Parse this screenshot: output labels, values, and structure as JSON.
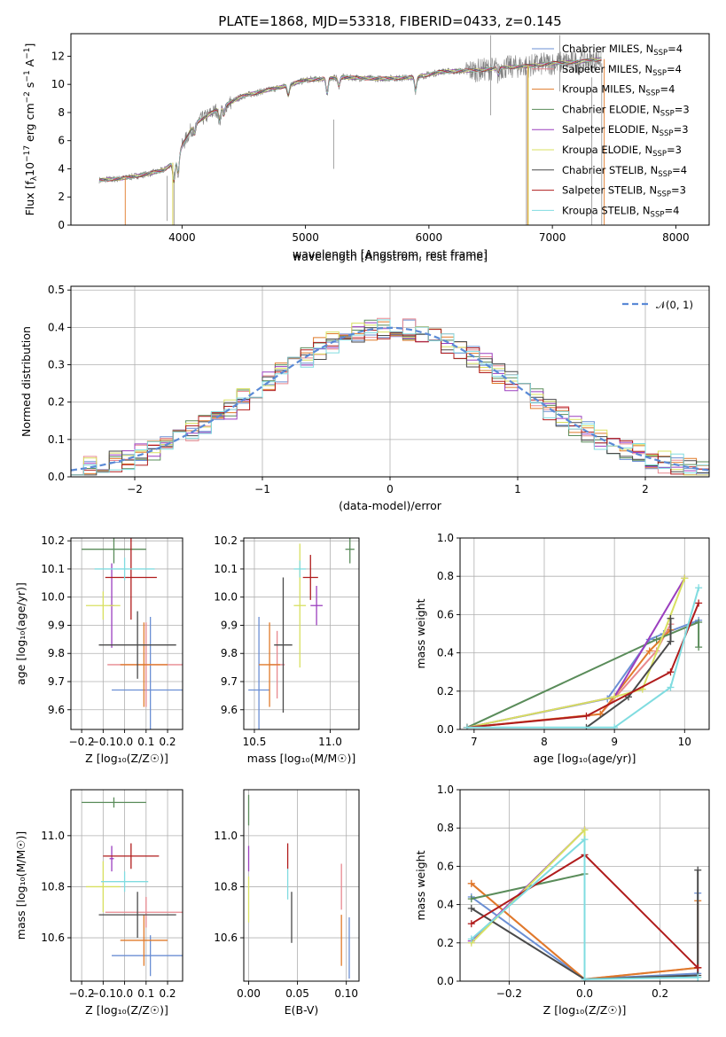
{
  "figure": {
    "title": "PLATE=1868, MJD=53318, FIBERID=0433, z=0.145"
  },
  "models": [
    {
      "label": "Chabrier MILES, N",
      "sub": "SSP",
      "tail": "=4",
      "color": "#6b8fd4"
    },
    {
      "label": "Salpeter MILES, N",
      "sub": "SSP",
      "tail": "=4",
      "color": "#e8888f"
    },
    {
      "label": "Kroupa MILES, N",
      "sub": "SSP",
      "tail": "=4",
      "color": "#e07a2a"
    },
    {
      "label": "Chabrier ELODIE, N",
      "sub": "SSP",
      "tail": "=3",
      "color": "#5a8c5a"
    },
    {
      "label": "Salpeter ELODIE, N",
      "sub": "SSP",
      "tail": "=3",
      "color": "#9b3fbf"
    },
    {
      "label": "Kroupa ELODIE, N",
      "sub": "SSP",
      "tail": "=3",
      "color": "#d8e060"
    },
    {
      "label": "Chabrier STELIB, N",
      "sub": "SSP",
      "tail": "=4",
      "color": "#4a4a4a"
    },
    {
      "label": "Salpeter STELIB, N",
      "sub": "SSP",
      "tail": "=3",
      "color": "#b01c1c"
    },
    {
      "label": "Kroupa STELIB, N",
      "sub": "SSP",
      "tail": "=4",
      "color": "#80dce0"
    }
  ],
  "chart_data": [
    {
      "id": "spectrum",
      "type": "line",
      "xlabel": "wavelength [Angstrom, rest frame]",
      "ylabel_pre": "Flux [f",
      "ylabel_sub": "λ",
      "ylabel_mid": "10",
      "ylabel_sup1": "−17",
      "ylabel_post": " erg cm",
      "ylabel_sup2": "−2",
      "ylabel_post2": " s",
      "ylabel_sup3": "−1",
      "ylabel_post3": " A",
      "ylabel_sup4": "−1",
      "ylabel_end": "]",
      "xlim": [
        3100,
        8270
      ],
      "ylim": [
        0,
        13.6
      ],
      "xticks": [
        4000,
        5000,
        6000,
        7000,
        8000
      ],
      "yticks": [
        0,
        2,
        4,
        6,
        8,
        10,
        12
      ],
      "data_color": "#808080",
      "continuum": {
        "x": [
          3330,
          3500,
          3700,
          3850,
          3950,
          4000,
          4100,
          4300,
          4500,
          4800,
          5000,
          5300,
          5600,
          5900,
          6100,
          6400,
          6600,
          6800,
          7000,
          7200,
          7400
        ],
        "y": [
          3.2,
          3.3,
          3.6,
          3.9,
          4.6,
          5.6,
          7.2,
          8.3,
          9.2,
          9.8,
          10.3,
          10.5,
          10.4,
          10.5,
          10.9,
          11.0,
          11.2,
          11.3,
          11.5,
          11.6,
          11.8
        ]
      },
      "absorption_features": [
        {
          "x": 3934,
          "depth": 1.6
        },
        {
          "x": 3969,
          "depth": 1.4
        },
        {
          "x": 4102,
          "depth": 0.8
        },
        {
          "x": 4304,
          "depth": 1.0
        },
        {
          "x": 4340,
          "depth": 0.7
        },
        {
          "x": 4861,
          "depth": 0.8
        },
        {
          "x": 5175,
          "depth": 1.2
        },
        {
          "x": 5270,
          "depth": 0.6
        },
        {
          "x": 5892,
          "depth": 1.0
        },
        {
          "x": 6563,
          "depth": 0.5
        }
      ]
    },
    {
      "id": "residual_histogram",
      "type": "bar",
      "xlabel": "(data-model)/error",
      "ylabel": "Normed distribution",
      "xlim": [
        -2.5,
        2.5
      ],
      "ylim": [
        0,
        0.51
      ],
      "xticks": [
        -2,
        -1,
        0,
        1,
        2
      ],
      "yticks": [
        0.0,
        0.1,
        0.2,
        0.3,
        0.4,
        0.5
      ],
      "bins": {
        "start": -2.5,
        "width": 0.1,
        "count": 50
      },
      "legend": {
        "label": "𝒩(0, 1)",
        "color": "#5b8ad6"
      },
      "gaussian": {
        "mean": 0,
        "sigma": 1
      }
    },
    {
      "id": "age_vs_Z",
      "type": "scatter",
      "xlabel": "Z [log₁₀(Z/Z☉)]",
      "ylabel": "age  [log₁₀(age/yr)]",
      "xlim": [
        -0.25,
        0.27
      ],
      "ylim": [
        9.53,
        10.21
      ],
      "xticks": [
        -0.2,
        -0.1,
        0.0,
        0.1,
        0.2
      ],
      "yticks": [
        9.6,
        9.7,
        9.8,
        9.9,
        10.0,
        10.1,
        10.2
      ],
      "points": [
        {
          "m": 0,
          "x": 0.12,
          "y": 9.67,
          "xerr": 0.18,
          "yerr": 0.26
        },
        {
          "m": 1,
          "x": 0.1,
          "y": 9.76,
          "xerr": 0.18,
          "yerr": 0.15
        },
        {
          "m": 2,
          "x": 0.09,
          "y": 9.76,
          "xerr": 0.11,
          "yerr": 0.15
        },
        {
          "m": 3,
          "x": -0.05,
          "y": 10.17,
          "xerr": 0.15,
          "yerr": 0.05
        },
        {
          "m": 4,
          "x": -0.06,
          "y": 9.97,
          "xerr": 0.01,
          "yerr": 0.15
        },
        {
          "m": 5,
          "x": -0.1,
          "y": 9.97,
          "xerr": 0.08,
          "yerr": 0.05
        },
        {
          "m": 6,
          "x": 0.06,
          "y": 9.83,
          "xerr": 0.18,
          "yerr": 0.12
        },
        {
          "m": 7,
          "x": 0.03,
          "y": 10.07,
          "xerr": 0.12,
          "yerr": 0.15
        },
        {
          "m": 8,
          "x": 0.0,
          "y": 10.1,
          "xerr": 0.14,
          "yerr": 0.04
        }
      ]
    },
    {
      "id": "age_vs_mass",
      "type": "scatter",
      "xlabel": "mass [log₁₀(M/M☉)]",
      "ylabel": "",
      "xlim": [
        10.43,
        11.19
      ],
      "ylim": [
        9.53,
        10.21
      ],
      "xticks": [
        10.5,
        11.0
      ],
      "yticks": [
        9.6,
        9.7,
        9.8,
        9.9,
        10.0,
        10.1,
        10.2
      ],
      "points": [
        {
          "m": 0,
          "x": 10.53,
          "y": 9.67,
          "xerr": 0.07,
          "yerr": 0.26
        },
        {
          "m": 1,
          "x": 10.65,
          "y": 9.76,
          "xerr": 0.05,
          "yerr": 0.12
        },
        {
          "m": 2,
          "x": 10.6,
          "y": 9.76,
          "xerr": 0.07,
          "yerr": 0.15
        },
        {
          "m": 3,
          "x": 11.13,
          "y": 10.17,
          "xerr": 0.03,
          "yerr": 0.05
        },
        {
          "m": 4,
          "x": 10.91,
          "y": 9.97,
          "xerr": 0.04,
          "yerr": 0.07
        },
        {
          "m": 5,
          "x": 10.8,
          "y": 9.97,
          "xerr": 0.04,
          "yerr": 0.22
        },
        {
          "m": 6,
          "x": 10.69,
          "y": 9.83,
          "xerr": 0.06,
          "yerr": 0.24
        },
        {
          "m": 7,
          "x": 10.87,
          "y": 10.07,
          "xerr": 0.05,
          "yerr": 0.08
        },
        {
          "m": 8,
          "x": 10.8,
          "y": 10.1,
          "xerr": 0.04,
          "yerr": 0.03
        }
      ]
    },
    {
      "id": "mass_weight_vs_age",
      "type": "line",
      "xlabel": "age  [log₁₀(age/yr)]",
      "ylabel": "mass weight",
      "xlim": [
        6.8,
        10.35
      ],
      "ylim": [
        0,
        1.0
      ],
      "xticks": [
        7,
        8,
        9,
        10
      ],
      "yticks": [
        0.0,
        0.2,
        0.4,
        0.6,
        0.8,
        1.0
      ],
      "series": [
        {
          "m": 0,
          "x": [
            6.9,
            8.9,
            9.5,
            9.7,
            10.2
          ],
          "y": [
            0.01,
            0.16,
            0.47,
            0.5,
            0.57
          ]
        },
        {
          "m": 1,
          "x": [
            6.9,
            8.8,
            9.6,
            9.8
          ],
          "y": [
            0.01,
            0.08,
            0.41,
            0.55
          ]
        },
        {
          "m": 2,
          "x": [
            6.9,
            8.8,
            9.5,
            9.8
          ],
          "y": [
            0.01,
            0.08,
            0.41,
            0.52
          ]
        },
        {
          "m": 3,
          "x": [
            6.9,
            9.6,
            10.2,
            10.2
          ],
          "y": [
            0.01,
            0.47,
            0.56,
            0.43
          ]
        },
        {
          "m": 4,
          "x": [
            6.9,
            9.0,
            10.0
          ],
          "y": [
            0.01,
            0.17,
            0.79
          ]
        },
        {
          "m": 5,
          "x": [
            6.9,
            9.0,
            9.4,
            10.0
          ],
          "y": [
            0.01,
            0.17,
            0.21,
            0.79
          ]
        },
        {
          "m": 6,
          "x": [
            8.6,
            9.2,
            9.8,
            9.8
          ],
          "y": [
            0.01,
            0.17,
            0.46,
            0.58
          ]
        },
        {
          "m": 7,
          "x": [
            6.9,
            8.6,
            9.8,
            10.2
          ],
          "y": [
            0.01,
            0.07,
            0.3,
            0.66
          ]
        },
        {
          "m": 8,
          "x": [
            6.9,
            9.0,
            9.8,
            10.2
          ],
          "y": [
            0.01,
            0.01,
            0.22,
            0.74
          ]
        }
      ]
    },
    {
      "id": "mass_vs_Z",
      "type": "scatter",
      "xlabel": "Z [log₁₀(Z/Z☉)]",
      "ylabel": "mass [log₁₀(M/M☉)]",
      "xlim": [
        -0.25,
        0.27
      ],
      "ylim": [
        10.43,
        11.18
      ],
      "xticks": [
        -0.2,
        -0.1,
        0.0,
        0.1,
        0.2
      ],
      "yticks": [
        10.6,
        10.8,
        11.0
      ],
      "points": [
        {
          "m": 0,
          "x": 0.12,
          "y": 10.53,
          "xerr": 0.18,
          "yerr": 0.08
        },
        {
          "m": 1,
          "x": 0.1,
          "y": 10.7,
          "xerr": 0.19,
          "yerr": 0.06
        },
        {
          "m": 2,
          "x": 0.09,
          "y": 10.59,
          "xerr": 0.11,
          "yerr": 0.1
        },
        {
          "m": 3,
          "x": -0.05,
          "y": 11.13,
          "xerr": 0.15,
          "yerr": 0.02
        },
        {
          "m": 4,
          "x": -0.06,
          "y": 10.91,
          "xerr": 0.01,
          "yerr": 0.05
        },
        {
          "m": 5,
          "x": -0.1,
          "y": 10.8,
          "xerr": 0.08,
          "yerr": 0.1
        },
        {
          "m": 6,
          "x": 0.06,
          "y": 10.69,
          "xerr": 0.18,
          "yerr": 0.09
        },
        {
          "m": 7,
          "x": 0.03,
          "y": 10.92,
          "xerr": 0.13,
          "yerr": 0.05
        },
        {
          "m": 8,
          "x": 0.0,
          "y": 10.82,
          "xerr": 0.11,
          "yerr": 0.04
        }
      ]
    },
    {
      "id": "mass_vs_ebv",
      "type": "scatter",
      "xlabel": "E(B-V)",
      "ylabel": "",
      "xlim": [
        -0.005,
        0.113
      ],
      "ylim": [
        10.43,
        11.18
      ],
      "xticks": [
        0.0,
        0.05,
        0.1
      ],
      "yticks": [
        10.6,
        10.8,
        11.0
      ],
      "points": [
        {
          "m": 0,
          "x": 0.103,
          "y": 10.56,
          "xerr": 0.0,
          "yerr": 0.12
        },
        {
          "m": 1,
          "x": 0.095,
          "y": 10.8,
          "xerr": 0.0,
          "yerr": 0.09
        },
        {
          "m": 2,
          "x": 0.095,
          "y": 10.59,
          "xerr": 0.0,
          "yerr": 0.1
        },
        {
          "m": 3,
          "x": 0.0,
          "y": 11.1,
          "xerr": 0.0,
          "yerr": 0.06
        },
        {
          "m": 4,
          "x": 0.0,
          "y": 10.91,
          "xerr": 0.0,
          "yerr": 0.05
        },
        {
          "m": 5,
          "x": 0.0,
          "y": 10.75,
          "xerr": 0.0,
          "yerr": 0.09
        },
        {
          "m": 6,
          "x": 0.044,
          "y": 10.68,
          "xerr": 0.0,
          "yerr": 0.1
        },
        {
          "m": 7,
          "x": 0.04,
          "y": 10.92,
          "xerr": 0.0,
          "yerr": 0.05
        },
        {
          "m": 8,
          "x": 0.04,
          "y": 10.81,
          "xerr": 0.0,
          "yerr": 0.06
        }
      ]
    },
    {
      "id": "mass_weight_vs_Z",
      "type": "line",
      "xlabel": "Z [log₁₀(Z/Z☉)]",
      "ylabel": "mass weight",
      "xlim": [
        -0.33,
        0.33
      ],
      "ylim": [
        0,
        1.0
      ],
      "xticks": [
        -0.2,
        0.0,
        0.2
      ],
      "yticks": [
        0.0,
        0.2,
        0.4,
        0.6,
        0.8,
        1.0
      ],
      "series": [
        {
          "m": 0,
          "x": [
            -0.3,
            0.0,
            0.3,
            0.3
          ],
          "y": [
            0.44,
            0.01,
            0.04,
            0.46
          ]
        },
        {
          "m": 1,
          "x": [
            -0.3,
            0.0,
            0.3,
            0.3
          ],
          "y": [
            0.51,
            0.01,
            0.07,
            0.07
          ]
        },
        {
          "m": 2,
          "x": [
            -0.3,
            0.0,
            0.3,
            0.3
          ],
          "y": [
            0.51,
            0.01,
            0.07,
            0.42
          ]
        },
        {
          "m": 3,
          "x": [
            -0.3,
            0.0,
            0.0
          ],
          "y": [
            0.43,
            0.56,
            0.01
          ]
        },
        {
          "m": 4,
          "x": [
            -0.3,
            0.0,
            0.0
          ],
          "y": [
            0.21,
            0.79,
            0.01
          ]
        },
        {
          "m": 5,
          "x": [
            -0.3,
            0.0,
            0.0
          ],
          "y": [
            0.2,
            0.79,
            0.01
          ]
        },
        {
          "m": 6,
          "x": [
            -0.3,
            0.0,
            0.3,
            0.3
          ],
          "y": [
            0.38,
            0.01,
            0.03,
            0.58
          ]
        },
        {
          "m": 7,
          "x": [
            -0.3,
            0.0,
            0.3,
            0.3
          ],
          "y": [
            0.3,
            0.66,
            0.07,
            0.07
          ]
        },
        {
          "m": 8,
          "x": [
            -0.3,
            0.0,
            0.0,
            0.3,
            0.3
          ],
          "y": [
            0.22,
            0.74,
            0.01,
            0.02,
            0.02
          ]
        }
      ]
    }
  ]
}
